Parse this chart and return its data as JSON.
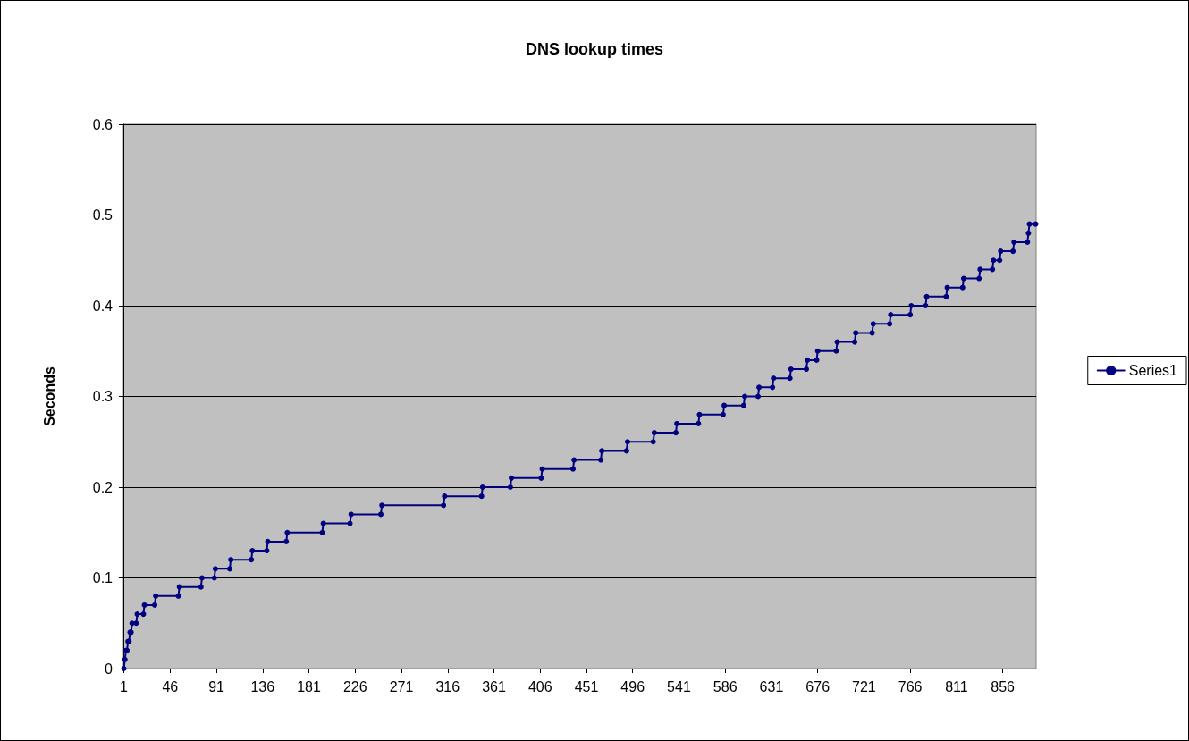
{
  "chart_data": {
    "type": "line",
    "title": "DNS lookup times",
    "ylabel": "Seconds",
    "xlim": [
      0.5,
      888.5
    ],
    "xticks": [
      1,
      46,
      91,
      136,
      181,
      226,
      271,
      316,
      361,
      406,
      451,
      496,
      541,
      586,
      631,
      676,
      721,
      766,
      811,
      856
    ],
    "ylim": [
      0,
      0.6
    ],
    "yticks": [
      0,
      0.1,
      0.2,
      0.3,
      0.4,
      0.5,
      0.6
    ],
    "grid": "y",
    "legend": "right",
    "marker": "circle",
    "x": [
      1,
      2,
      3,
      4,
      5,
      6,
      7,
      8,
      9,
      13,
      14,
      20,
      21,
      31,
      32,
      54,
      55,
      76,
      77,
      89,
      90,
      104,
      105,
      125,
      126,
      140,
      141,
      159,
      160,
      194,
      195,
      221,
      222,
      251,
      252,
      312,
      313,
      349,
      350,
      377,
      378,
      407,
      408,
      438,
      439,
      465,
      466,
      490,
      491,
      516,
      517,
      538,
      539,
      560,
      561,
      584,
      585,
      604,
      605,
      618,
      619,
      632,
      633,
      649,
      650,
      665,
      666,
      675,
      676,
      694,
      695,
      712,
      713,
      729,
      730,
      746,
      747,
      766,
      767,
      781,
      782,
      801,
      802,
      817,
      818,
      833,
      834,
      846,
      847,
      853,
      854,
      866,
      867,
      880,
      881,
      882,
      888
    ],
    "series": [
      {
        "name": "Series1",
        "color": "#000080",
        "values": [
          0,
          0.01,
          0.02,
          0.02,
          0.03,
          0.03,
          0.04,
          0.04,
          0.05,
          0.05,
          0.06,
          0.06,
          0.07,
          0.07,
          0.08,
          0.08,
          0.09,
          0.09,
          0.1,
          0.1,
          0.11,
          0.11,
          0.12,
          0.12,
          0.13,
          0.13,
          0.14,
          0.14,
          0.15,
          0.15,
          0.16,
          0.16,
          0.17,
          0.17,
          0.18,
          0.18,
          0.19,
          0.19,
          0.2,
          0.2,
          0.21,
          0.21,
          0.22,
          0.22,
          0.23,
          0.23,
          0.24,
          0.24,
          0.25,
          0.25,
          0.26,
          0.26,
          0.27,
          0.27,
          0.28,
          0.28,
          0.29,
          0.29,
          0.3,
          0.3,
          0.31,
          0.31,
          0.32,
          0.32,
          0.33,
          0.33,
          0.34,
          0.34,
          0.35,
          0.35,
          0.36,
          0.36,
          0.37,
          0.37,
          0.38,
          0.38,
          0.39,
          0.39,
          0.4,
          0.4,
          0.41,
          0.41,
          0.42,
          0.42,
          0.43,
          0.43,
          0.44,
          0.44,
          0.45,
          0.45,
          0.46,
          0.46,
          0.47,
          0.47,
          0.48,
          0.49,
          0.49
        ]
      }
    ]
  }
}
